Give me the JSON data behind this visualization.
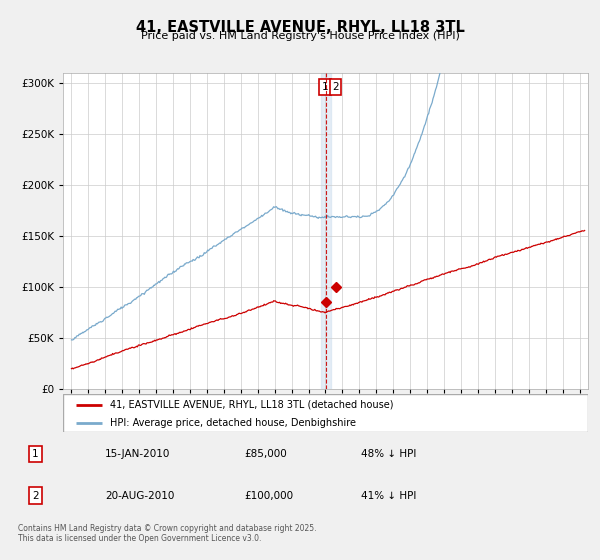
{
  "title": "41, EASTVILLE AVENUE, RHYL, LL18 3TL",
  "subtitle": "Price paid vs. HM Land Registry's House Price Index (HPI)",
  "legend_line1": "41, EASTVILLE AVENUE, RHYL, LL18 3TL (detached house)",
  "legend_line2": "HPI: Average price, detached house, Denbighshire",
  "annotation1_date": "15-JAN-2010",
  "annotation1_price": "£85,000",
  "annotation1_hpi": "48% ↓ HPI",
  "annotation2_date": "20-AUG-2010",
  "annotation2_price": "£100,000",
  "annotation2_hpi": "41% ↓ HPI",
  "footer": "Contains HM Land Registry data © Crown copyright and database right 2025.\nThis data is licensed under the Open Government Licence v3.0.",
  "vline_x": 2010.04,
  "sale1_x": 2010.04,
  "sale1_y": 85000,
  "sale2_x": 2010.63,
  "sale2_y": 100000,
  "red_color": "#cc0000",
  "blue_color": "#7aaacc",
  "vline_color": "#cc0000",
  "ylim": [
    0,
    310000
  ],
  "xlim": [
    1994.5,
    2025.5
  ],
  "yticks": [
    0,
    50000,
    100000,
    150000,
    200000,
    250000,
    300000
  ],
  "background_color": "#f0f0f0"
}
